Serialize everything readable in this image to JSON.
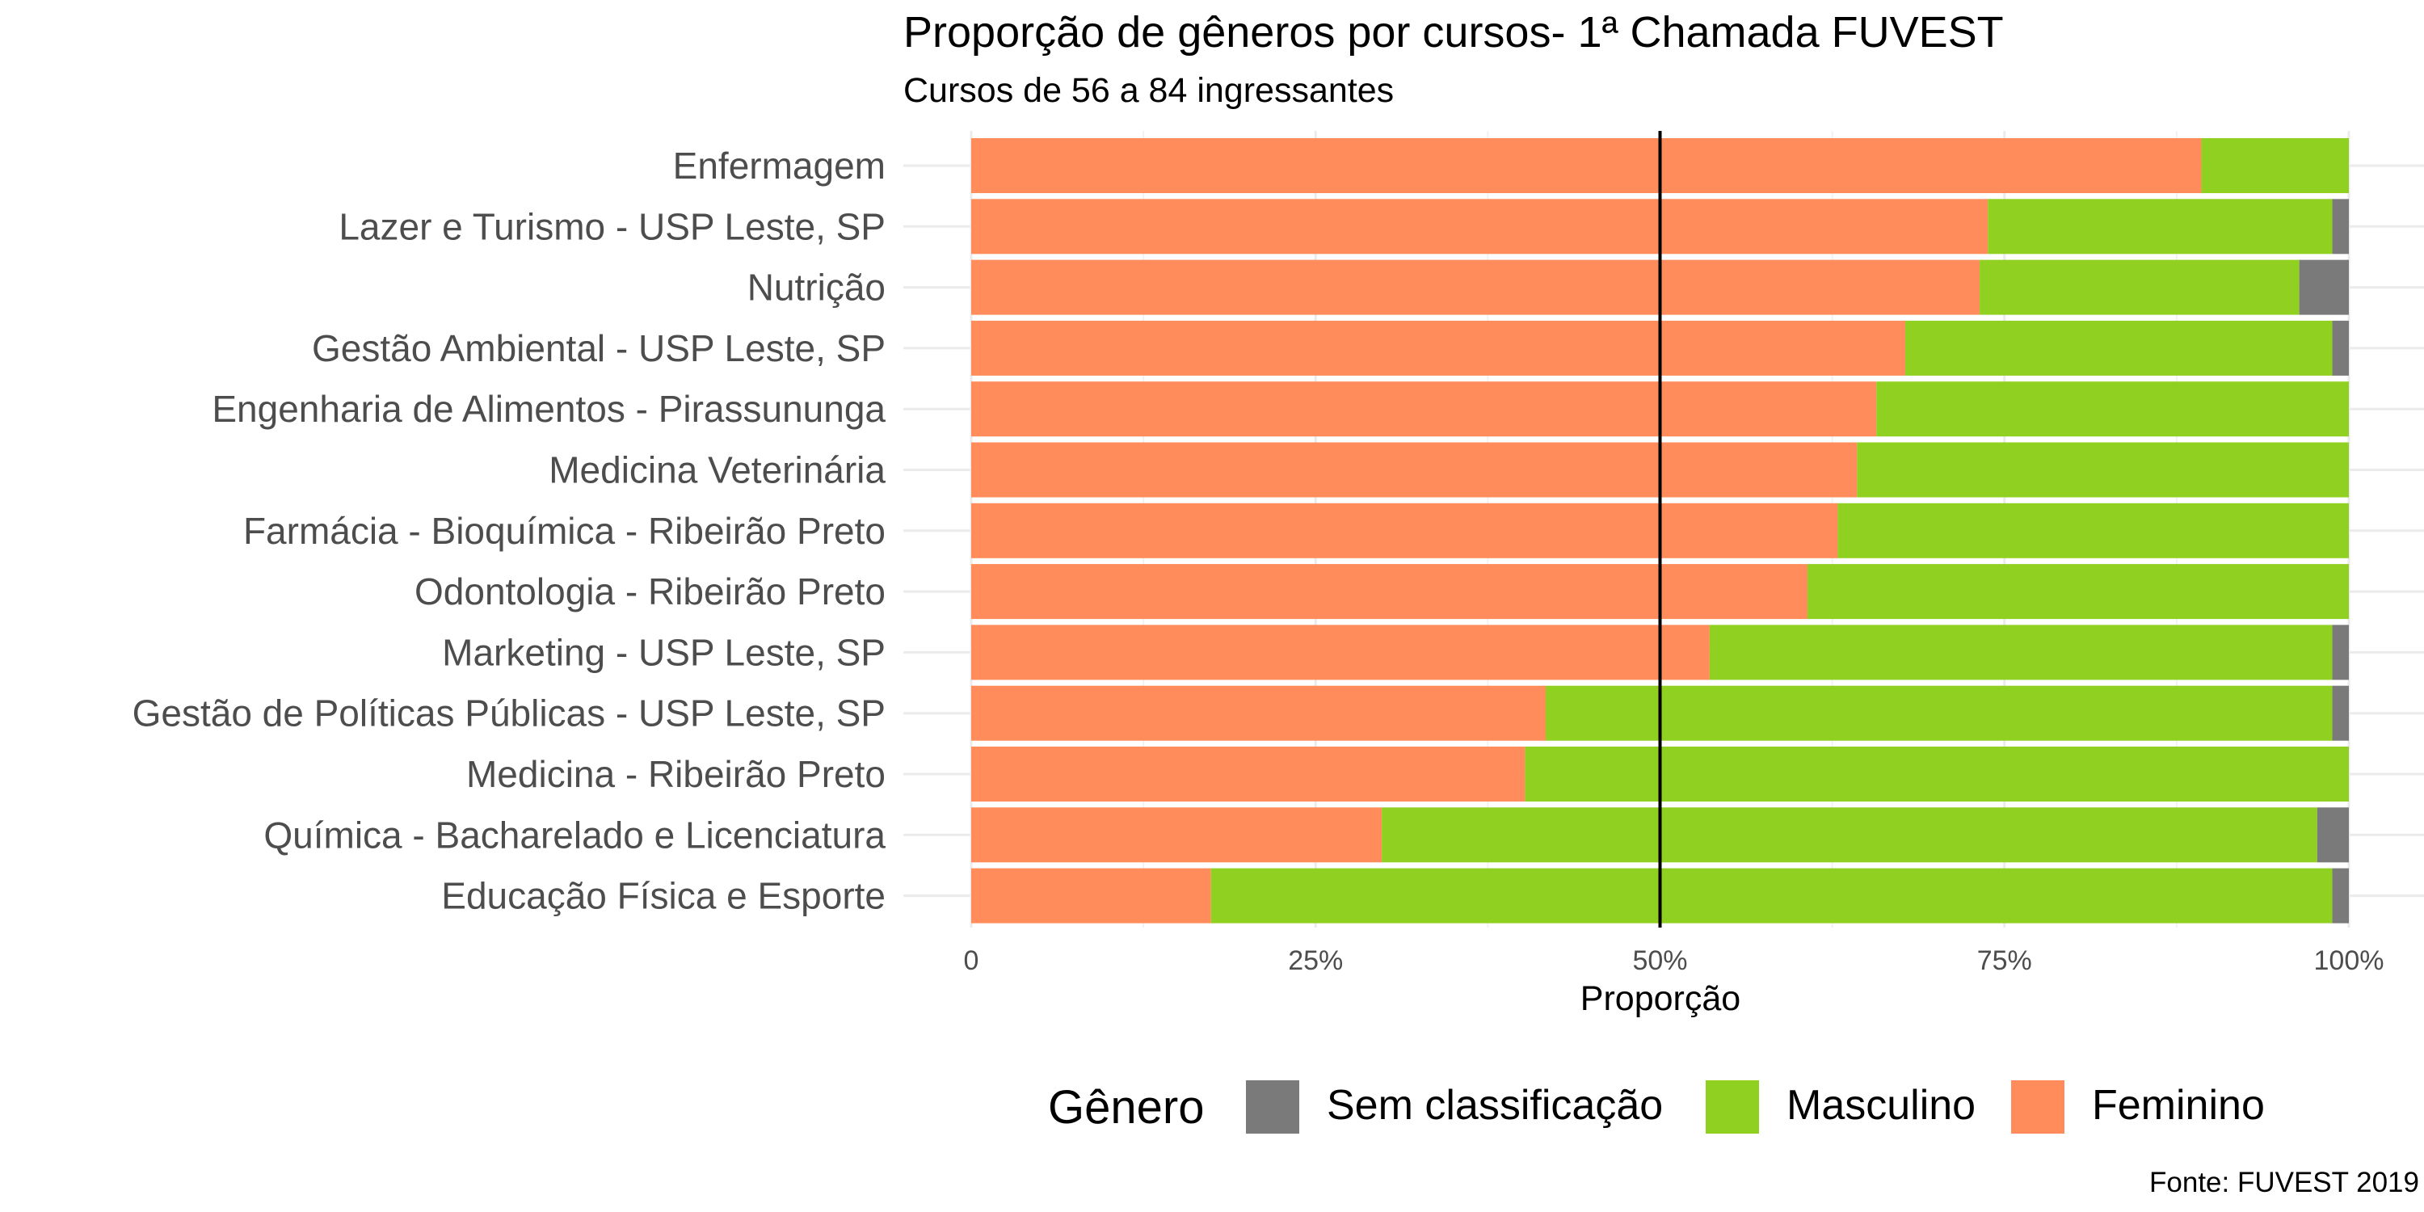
{
  "chart_data": {
    "type": "bar",
    "orientation": "horizontal",
    "stacked": "percent",
    "title": "Proporção de gêneros por cursos- 1ª Chamada FUVEST",
    "subtitle": "Cursos de 56 a 84 ingressantes",
    "xlabel": "Proporção",
    "ylabel": "",
    "caption": "Fonte: FUVEST 2019",
    "xlim": [
      0,
      1
    ],
    "x_ticks": [
      {
        "value": 0,
        "label": "0"
      },
      {
        "value": 0.25,
        "label": "25%"
      },
      {
        "value": 0.5,
        "label": "50%"
      },
      {
        "value": 0.75,
        "label": "75%"
      },
      {
        "value": 1,
        "label": "100%"
      }
    ],
    "reference_line": 0.5,
    "categories": [
      "Enfermagem",
      "Lazer e Turismo - USP Leste, SP",
      "Nutrição",
      "Gestão Ambiental - USP Leste, SP",
      "Engenharia de Alimentos - Pirassununga",
      "Medicina Veterinária",
      "Farmácia - Bioquímica - Ribeirão Preto",
      "Odontologia - Ribeirão Preto",
      "Marketing - USP Leste, SP",
      "Gestão de Políticas Públicas - USP Leste, SP",
      "Medicina - Ribeirão Preto",
      "Química - Bacharelado e Licenciatura",
      "Educação Física e Esporte"
    ],
    "series": [
      {
        "name": "Feminino",
        "color": "#FF8C5A",
        "values": [
          0.893,
          0.738,
          0.732,
          0.678,
          0.657,
          0.643,
          0.629,
          0.607,
          0.536,
          0.417,
          0.402,
          0.298,
          0.174
        ]
      },
      {
        "name": "Masculino",
        "color": "#90D020",
        "values": [
          0.107,
          0.25,
          0.232,
          0.31,
          0.343,
          0.357,
          0.371,
          0.393,
          0.452,
          0.571,
          0.598,
          0.679,
          0.814
        ]
      },
      {
        "name": "Sem classificação",
        "color": "#7A7A7A",
        "values": [
          0.0,
          0.012,
          0.036,
          0.012,
          0.0,
          0.0,
          0.0,
          0.0,
          0.012,
          0.012,
          0.0,
          0.023,
          0.012
        ]
      }
    ],
    "legend": {
      "title": "Gênero",
      "position": "bottom",
      "order": [
        "Sem classificação",
        "Masculino",
        "Feminino"
      ]
    }
  }
}
